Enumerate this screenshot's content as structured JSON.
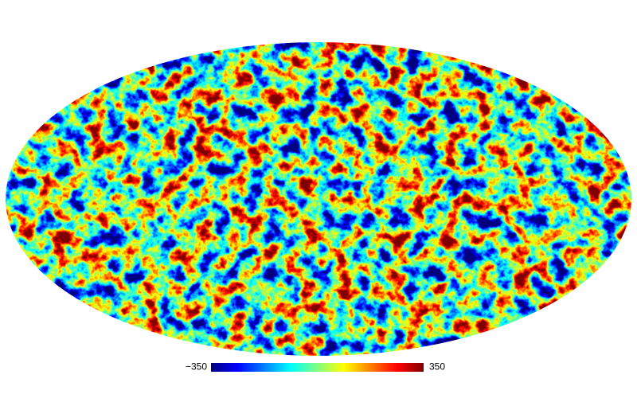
{
  "colorbar": {
    "ticks": [
      {
        "value": -350,
        "label": "−350"
      },
      350
    ]
  }
}
